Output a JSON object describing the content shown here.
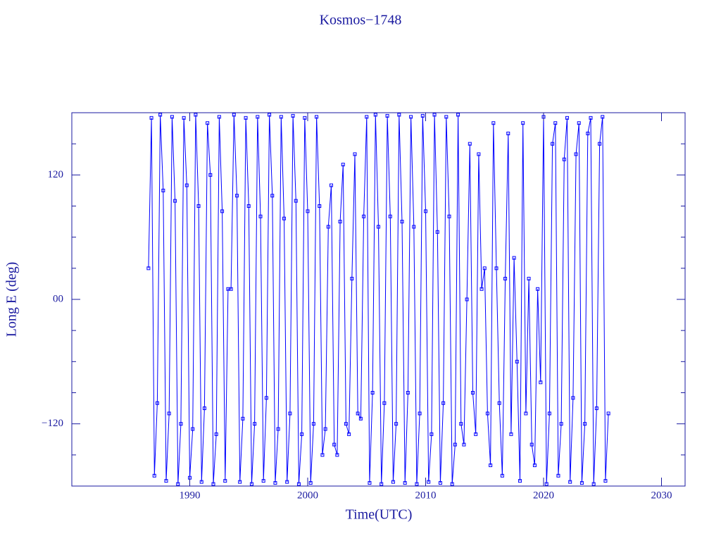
{
  "chart_data": {
    "type": "line",
    "title": "Kosmos−1748",
    "x_label": "Time(UTC)",
    "y_label": "Long E (deg)",
    "xlim": [
      1980,
      2032
    ],
    "xticks": [
      1990,
      2000,
      2010,
      2020,
      2030
    ],
    "ylim": [
      -180,
      180
    ],
    "yticks": [
      {
        "value": -120,
        "label": "−120"
      },
      {
        "value": 0,
        "label": "00"
      },
      120
    ],
    "yminorticks": [
      -150,
      -90,
      -60,
      -30,
      30,
      60,
      90,
      150
    ],
    "color": "#0000ff",
    "marker": "square",
    "x": [
      1986.5,
      1986.75,
      1987,
      1987.25,
      1987.5,
      1987.75,
      1988,
      1988.25,
      1988.5,
      1988.75,
      1989,
      1989.25,
      1989.5,
      1989.75,
      1990,
      1990.25,
      1990.5,
      1990.75,
      1991,
      1991.25,
      1991.5,
      1991.75,
      1992,
      1992.25,
      1992.5,
      1992.75,
      1993,
      1993.25,
      1993.5,
      1993.75,
      1994,
      1994.25,
      1994.5,
      1994.75,
      1995,
      1995.25,
      1995.5,
      1995.75,
      1996,
      1996.25,
      1996.5,
      1996.75,
      1997,
      1997.25,
      1997.5,
      1997.75,
      1998,
      1998.25,
      1998.5,
      1998.75,
      1999,
      1999.25,
      1999.5,
      1999.75,
      2000,
      2000.25,
      2000.5,
      2000.75,
      2001,
      2001.25,
      2001.5,
      2001.75,
      2002,
      2002.25,
      2002.5,
      2002.75,
      2003,
      2003.25,
      2003.5,
      2003.75,
      2004,
      2004.25,
      2004.5,
      2004.75,
      2005,
      2005.25,
      2005.5,
      2005.75,
      2006,
      2006.25,
      2006.5,
      2006.75,
      2007,
      2007.25,
      2007.5,
      2007.75,
      2008,
      2008.25,
      2008.5,
      2008.75,
      2009,
      2009.25,
      2009.5,
      2009.75,
      2010,
      2010.25,
      2010.5,
      2010.75,
      2011,
      2011.25,
      2011.5,
      2011.75,
      2012,
      2012.25,
      2012.5,
      2012.75,
      2013,
      2013.25,
      2013.5,
      2013.75,
      2014,
      2014.25,
      2014.5,
      2014.75,
      2015,
      2015.25,
      2015.5,
      2015.75,
      2016,
      2016.25,
      2016.5,
      2016.75,
      2017,
      2017.25,
      2017.5,
      2017.75,
      2018,
      2018.25,
      2018.5,
      2018.75,
      2019,
      2019.25,
      2019.5,
      2019.75,
      2020,
      2020.25,
      2020.5,
      2020.75,
      2021,
      2021.25,
      2021.5,
      2021.75,
      2022,
      2022.25,
      2022.5,
      2022.75,
      2023,
      2023.25,
      2023.5,
      2023.75,
      2024,
      2024.25,
      2024.5,
      2024.75,
      2025,
      2025.25,
      2025.5
    ],
    "values": [
      30,
      175,
      -170,
      -100,
      178,
      105,
      -175,
      -110,
      176,
      95,
      -178,
      -120,
      175,
      110,
      -172,
      -125,
      178,
      90,
      -176,
      -105,
      170,
      120,
      -178,
      -130,
      176,
      85,
      -175,
      10,
      10,
      178,
      100,
      -176,
      -115,
      175,
      90,
      -178,
      -120,
      176,
      80,
      -175,
      -95,
      178,
      100,
      -177,
      -125,
      176,
      78,
      -176,
      -110,
      177,
      95,
      -178,
      -130,
      175,
      85,
      -177,
      -120,
      176,
      90,
      -150,
      -125,
      70,
      110,
      -140,
      -150,
      75,
      130,
      -120,
      -130,
      20,
      140,
      -110,
      -115,
      80,
      176,
      -177,
      -90,
      178,
      70,
      -178,
      -100,
      177,
      80,
      -176,
      -120,
      178,
      75,
      -177,
      -90,
      176,
      70,
      -178,
      -110,
      177,
      85,
      -176,
      -130,
      178,
      65,
      -177,
      -100,
      176,
      80,
      -178,
      -140,
      178,
      -120,
      -140,
      0,
      150,
      -90,
      -130,
      140,
      10,
      30,
      -110,
      -160,
      170,
      30,
      -100,
      -170,
      20,
      160,
      -130,
      40,
      -60,
      -175,
      170,
      -110,
      20,
      -140,
      -160,
      10,
      -80,
      176,
      -178,
      -110,
      150,
      170,
      -170,
      -120,
      135,
      175,
      -176,
      -95,
      140,
      170,
      -177,
      -120,
      160,
      175,
      -178,
      -105,
      150,
      176,
      -175,
      -110
    ]
  }
}
